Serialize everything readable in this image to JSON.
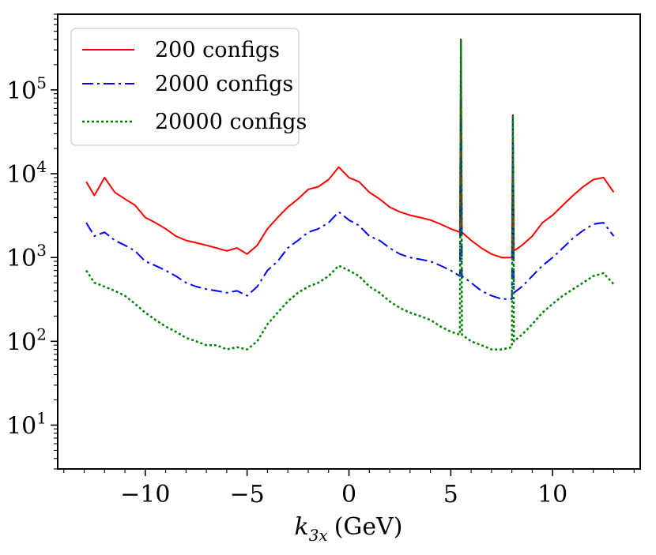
{
  "chart_data": {
    "type": "line",
    "title": "",
    "xlabel": "k_{3x} (GeV)",
    "xlabel_parts": {
      "symbol": "k",
      "subscript": "3x",
      "unit": "(GeV)"
    },
    "ylabel": "",
    "xscale": "linear",
    "yscale": "log",
    "xlim": [
      -14.3,
      14.3
    ],
    "ylim": [
      3,
      800000
    ],
    "x_ticks": [
      {
        "value": -10,
        "label": "−10"
      },
      {
        "value": -5,
        "label": "−5"
      },
      {
        "value": 0,
        "label": "0"
      },
      {
        "value": 5,
        "label": "5"
      },
      {
        "value": 10,
        "label": "10"
      }
    ],
    "y_ticks": [
      {
        "value": 10,
        "base": "10",
        "exp": "1"
      },
      {
        "value": 100,
        "base": "10",
        "exp": "2"
      },
      {
        "value": 1000,
        "base": "10",
        "exp": "3"
      },
      {
        "value": 10000,
        "base": "10",
        "exp": "4"
      },
      {
        "value": 100000,
        "base": "10",
        "exp": "5"
      }
    ],
    "legend_position": "top-left",
    "series": [
      {
        "name": "200 configs",
        "color": "#ff0000",
        "style": "solid",
        "x": [
          -12.9,
          -12.5,
          -12.0,
          -11.5,
          -11.0,
          -10.5,
          -10.0,
          -9.5,
          -9.0,
          -8.5,
          -8.0,
          -7.5,
          -7.0,
          -6.5,
          -6.0,
          -5.5,
          -5.0,
          -4.5,
          -4.0,
          -3.5,
          -3.0,
          -2.5,
          -2.0,
          -1.5,
          -1.0,
          -0.5,
          0.0,
          0.5,
          1.0,
          1.5,
          2.0,
          2.5,
          3.0,
          3.5,
          4.0,
          4.5,
          5.0,
          5.45,
          5.5,
          5.55,
          6.0,
          6.5,
          7.0,
          7.5,
          8.0,
          8.05,
          8.1,
          8.5,
          9.0,
          9.5,
          10.0,
          10.5,
          11.0,
          11.5,
          12.0,
          12.5,
          13.0
        ],
        "y": [
          8000,
          5500,
          9000,
          6000,
          5000,
          4200,
          3000,
          2600,
          2200,
          1800,
          1600,
          1500,
          1400,
          1300,
          1200,
          1300,
          1100,
          1400,
          2200,
          3000,
          4000,
          5000,
          6500,
          7000,
          8500,
          12000,
          9000,
          8000,
          6000,
          5000,
          4000,
          3500,
          3200,
          3000,
          2800,
          2500,
          2200,
          2000,
          400000,
          2000,
          1600,
          1300,
          1100,
          1000,
          1000,
          50000,
          1200,
          1400,
          1800,
          2600,
          3200,
          4200,
          5500,
          7000,
          8500,
          9000,
          6000
        ]
      },
      {
        "name": "2000 configs",
        "color": "#0000ff",
        "style": "dashdot",
        "x": [
          -12.9,
          -12.5,
          -12.0,
          -11.5,
          -11.0,
          -10.5,
          -10.0,
          -9.5,
          -9.0,
          -8.5,
          -8.0,
          -7.5,
          -7.0,
          -6.5,
          -6.0,
          -5.5,
          -5.0,
          -4.5,
          -4.0,
          -3.5,
          -3.0,
          -2.5,
          -2.0,
          -1.5,
          -1.0,
          -0.5,
          0.0,
          0.5,
          1.0,
          1.5,
          2.0,
          2.5,
          3.0,
          3.5,
          4.0,
          4.5,
          5.0,
          5.45,
          5.5,
          5.55,
          6.0,
          6.5,
          7.0,
          7.5,
          8.0,
          8.05,
          8.1,
          8.5,
          9.0,
          9.5,
          10.0,
          10.5,
          11.0,
          11.5,
          12.0,
          12.5,
          13.0
        ],
        "y": [
          2600,
          1800,
          2000,
          1600,
          1400,
          1200,
          900,
          800,
          700,
          600,
          500,
          450,
          420,
          400,
          380,
          400,
          350,
          450,
          700,
          900,
          1300,
          1600,
          2000,
          2200,
          2600,
          3500,
          2800,
          2400,
          1800,
          1600,
          1300,
          1100,
          1000,
          950,
          900,
          800,
          700,
          600,
          400000,
          600,
          500,
          400,
          350,
          320,
          320,
          50000,
          380,
          450,
          600,
          800,
          1000,
          1300,
          1700,
          2100,
          2500,
          2600,
          1800
        ]
      },
      {
        "name": "20000 configs",
        "color": "#008000",
        "style": "dotted",
        "x": [
          -12.9,
          -12.5,
          -12.0,
          -11.5,
          -11.0,
          -10.5,
          -10.0,
          -9.5,
          -9.0,
          -8.5,
          -8.0,
          -7.5,
          -7.0,
          -6.5,
          -6.0,
          -5.5,
          -5.0,
          -4.5,
          -4.0,
          -3.5,
          -3.0,
          -2.5,
          -2.0,
          -1.5,
          -1.0,
          -0.5,
          0.0,
          0.5,
          1.0,
          1.5,
          2.0,
          2.5,
          3.0,
          3.5,
          4.0,
          4.5,
          5.0,
          5.45,
          5.5,
          5.55,
          6.0,
          6.5,
          7.0,
          7.5,
          8.0,
          8.05,
          8.1,
          8.5,
          9.0,
          9.5,
          10.0,
          10.5,
          11.0,
          11.5,
          12.0,
          12.5,
          13.0
        ],
        "y": [
          700,
          500,
          450,
          400,
          350,
          280,
          220,
          180,
          150,
          130,
          110,
          100,
          90,
          90,
          80,
          85,
          80,
          100,
          160,
          220,
          300,
          380,
          450,
          500,
          600,
          800,
          700,
          600,
          450,
          380,
          300,
          250,
          220,
          200,
          180,
          150,
          130,
          120,
          400000,
          120,
          100,
          90,
          80,
          80,
          85,
          50000,
          100,
          120,
          160,
          220,
          280,
          350,
          420,
          500,
          600,
          650,
          480
        ]
      }
    ]
  }
}
